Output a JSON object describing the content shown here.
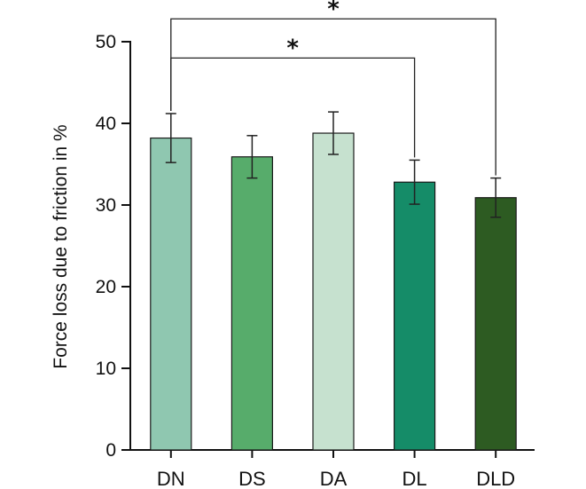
{
  "chart_data": {
    "type": "bar",
    "title": "",
    "xlabel": "",
    "ylabel": "Force loss due to friction in %",
    "ylim": [
      0,
      50
    ],
    "yticks": [
      0,
      10,
      20,
      30,
      40,
      50
    ],
    "ytick_labels": [
      "0",
      "10",
      "20",
      "30",
      "40",
      "50"
    ],
    "categories": [
      "DN",
      "DS",
      "DA",
      "DL",
      "DLD"
    ],
    "values": [
      38.2,
      35.9,
      38.8,
      32.8,
      30.9
    ],
    "errors": [
      3.0,
      2.6,
      2.6,
      2.7,
      2.4
    ],
    "colors": [
      "#8fc7b0",
      "#57ac6b",
      "#c6e1cf",
      "#158c68",
      "#2d5b22"
    ],
    "significance": [
      {
        "from": "DN",
        "to": "DL",
        "label": "*",
        "y": 48
      },
      {
        "from": "DN",
        "to": "DLD",
        "label": "*",
        "y": 52.8
      }
    ]
  }
}
